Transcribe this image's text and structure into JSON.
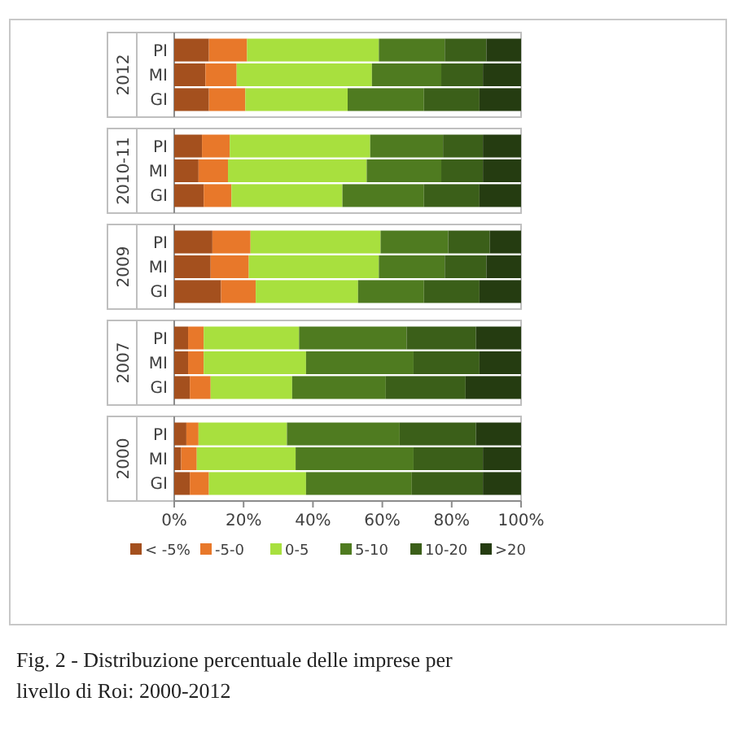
{
  "chart_data": [
    {
      "type": "bar",
      "orientation": "horizontal",
      "stacked": true,
      "title": "2012",
      "categories": [
        "PI",
        "MI",
        "GI"
      ],
      "xlim": [
        0,
        100
      ],
      "tick_labels": "y",
      "series": [
        {
          "color": "#a4501e",
          "values": [
            10,
            9,
            10
          ]
        },
        {
          "color": "#e8782a",
          "values": [
            11,
            9,
            10.5
          ]
        },
        {
          "color": "#a8e03e",
          "values": [
            38,
            39,
            29.5
          ]
        },
        {
          "color": "#4f7b20",
          "values": [
            19,
            20,
            22
          ]
        },
        {
          "color": "#3b5f19",
          "values": [
            12,
            12,
            16
          ]
        },
        {
          "color": "#253c11",
          "values": [
            10,
            11,
            12
          ]
        }
      ]
    },
    {
      "type": "bar",
      "orientation": "horizontal",
      "stacked": true,
      "title": "2010-11",
      "categories": [
        "PI",
        "MI",
        "GI"
      ],
      "xlim": [
        0,
        100
      ],
      "tick_labels": "y",
      "series": [
        {
          "color": "#a4501e",
          "values": [
            8,
            7,
            8.5
          ]
        },
        {
          "color": "#e8782a",
          "values": [
            8,
            8.5,
            8
          ]
        },
        {
          "color": "#a8e03e",
          "values": [
            40.5,
            40,
            32
          ]
        },
        {
          "color": "#4f7b20",
          "values": [
            21,
            21.5,
            23.5
          ]
        },
        {
          "color": "#3b5f19",
          "values": [
            11.5,
            12,
            16
          ]
        },
        {
          "color": "#253c11",
          "values": [
            11,
            11,
            12
          ]
        }
      ]
    },
    {
      "type": "bar",
      "orientation": "horizontal",
      "stacked": true,
      "title": "2009",
      "categories": [
        "PI",
        "MI",
        "GI"
      ],
      "xlim": [
        0,
        100
      ],
      "tick_labels": "y",
      "series": [
        {
          "color": "#a4501e",
          "values": [
            11,
            10.5,
            13.5
          ]
        },
        {
          "color": "#e8782a",
          "values": [
            11,
            11,
            10
          ]
        },
        {
          "color": "#a8e03e",
          "values": [
            37.5,
            37.5,
            29.5
          ]
        },
        {
          "color": "#4f7b20",
          "values": [
            19.5,
            19,
            19
          ]
        },
        {
          "color": "#3b5f19",
          "values": [
            12,
            12,
            16
          ]
        },
        {
          "color": "#253c11",
          "values": [
            9,
            10,
            12
          ]
        }
      ]
    },
    {
      "type": "bar",
      "orientation": "horizontal",
      "stacked": true,
      "title": "2007",
      "categories": [
        "PI",
        "MI",
        "GI"
      ],
      "xlim": [
        0,
        100
      ],
      "tick_labels": "y",
      "series": [
        {
          "color": "#a4501e",
          "values": [
            4,
            4,
            4.5
          ]
        },
        {
          "color": "#e8782a",
          "values": [
            4.5,
            4.5,
            6
          ]
        },
        {
          "color": "#a8e03e",
          "values": [
            27.5,
            29.5,
            23.5
          ]
        },
        {
          "color": "#4f7b20",
          "values": [
            31,
            31,
            27
          ]
        },
        {
          "color": "#3b5f19",
          "values": [
            20,
            19,
            23
          ]
        },
        {
          "color": "#253c11",
          "values": [
            13,
            12,
            16
          ]
        }
      ]
    },
    {
      "type": "bar",
      "orientation": "horizontal",
      "stacked": true,
      "title": "2000",
      "categories": [
        "PI",
        "MI",
        "GI"
      ],
      "xlim": [
        0,
        100
      ],
      "xticks": [
        {
          "value": 0,
          "label": "0%"
        },
        {
          "value": 20,
          "label": "20%"
        },
        {
          "value": 40,
          "label": "40%"
        },
        {
          "value": 60,
          "label": "60%"
        },
        {
          "value": 80,
          "label": "80%"
        },
        {
          "value": 100,
          "label": "100%"
        }
      ],
      "legend": "bottom",
      "annotations": [
        "Fig. 2 - Distribuzione percentuale delle imprese per livello di Roi: 2000-2012"
      ],
      "series": [
        {
          "name": "< -5%",
          "color": "#a4501e",
          "values": [
            3.5,
            2,
            4.5
          ]
        },
        {
          "name": "-5-0",
          "color": "#e8782a",
          "values": [
            3.5,
            4.5,
            5.5
          ]
        },
        {
          "name": "0-5",
          "color": "#a8e03e",
          "values": [
            25.5,
            28.5,
            28
          ]
        },
        {
          "name": "5-10",
          "color": "#4f7b20",
          "values": [
            32.5,
            34,
            30.5
          ]
        },
        {
          "name": "10-20",
          "color": "#3b5f19",
          "values": [
            22,
            20,
            20.5
          ]
        },
        {
          "name": ">20",
          "color": "#253c11",
          "values": [
            13,
            11,
            11
          ]
        }
      ]
    }
  ]
}
